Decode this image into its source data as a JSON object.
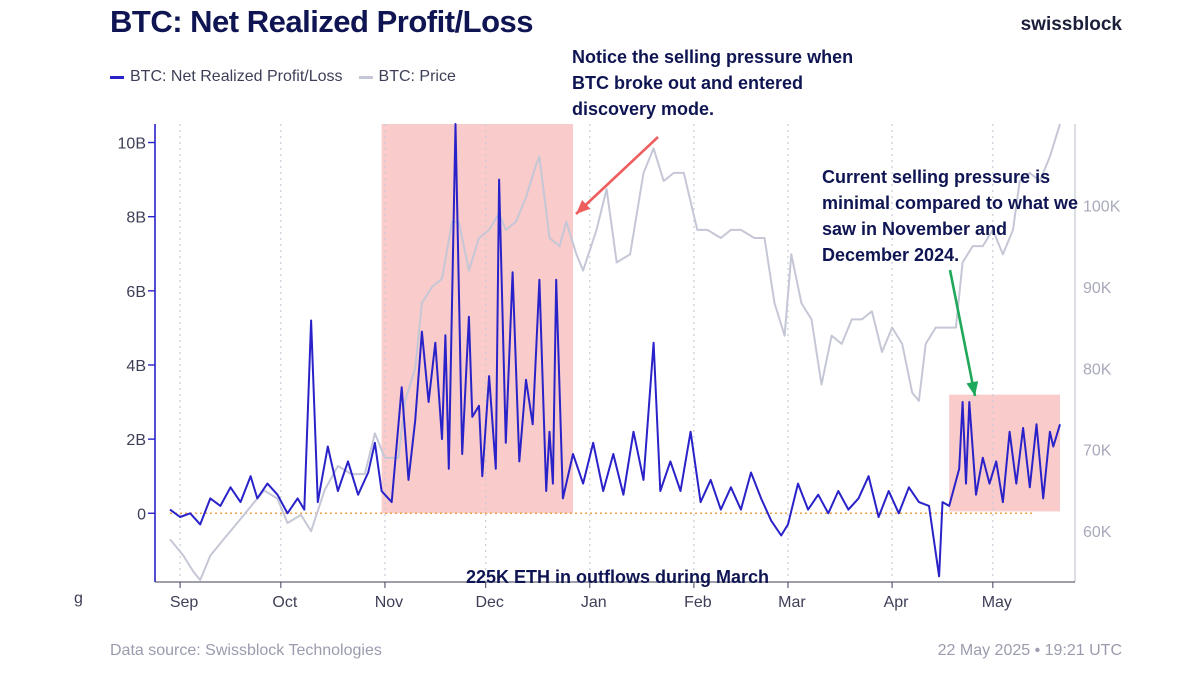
{
  "header": {
    "title": "BTC: Net Realized Profit/Loss",
    "brand": "swissblock"
  },
  "legend": [
    {
      "label": "BTC: Net Realized Profit/Loss",
      "color": "#2a22c9"
    },
    {
      "label": "BTC: Price",
      "color": "#c5c7d6"
    }
  ],
  "annotations": {
    "top": "Notice the selling pressure when BTC broke out and entered discovery mode.",
    "right": "Current selling pressure is minimal compared to what we saw in November and December 2024.",
    "bottom": "225K ETH in outflows during March"
  },
  "footer": {
    "source": "Data source: Swissblock Technologies",
    "timestamp": "22 May 2025 • 19:21 UTC"
  },
  "edge_glyph": "g",
  "colors": {
    "npl_line": "#2a22c9",
    "price_line": "#c5c7d6",
    "highlight": "#f7b9b9",
    "zero_line": "#f0a24a",
    "grid": "#c9cbd6",
    "axis": "#3d3f57",
    "arrow_red": "#ee5e5e",
    "arrow_green": "#1fa85a"
  },
  "chart_data": {
    "type": "line",
    "x_axis": {
      "start": "2024-08-29",
      "end": "2025-05-21",
      "ticks": [
        {
          "date": "2024-09-01",
          "label": "Sep"
        },
        {
          "date": "2024-10-01",
          "label": "Oct"
        },
        {
          "date": "2024-11-01",
          "label": "Nov"
        },
        {
          "date": "2024-12-01",
          "label": "Dec"
        },
        {
          "date": "2025-01-01",
          "label": "Jan"
        },
        {
          "date": "2025-02-01",
          "label": "Feb"
        },
        {
          "date": "2025-03-01",
          "label": "Mar"
        },
        {
          "date": "2025-04-01",
          "label": "Apr"
        },
        {
          "date": "2025-05-01",
          "label": "May"
        }
      ]
    },
    "y_left": {
      "min": -1.8,
      "max": 10.5,
      "ticks": [
        {
          "value": 0,
          "label": "0"
        },
        {
          "value": 2,
          "label": "2B"
        },
        {
          "value": 4,
          "label": "4B"
        },
        {
          "value": 6,
          "label": "6B"
        },
        {
          "value": 8,
          "label": "8B"
        },
        {
          "value": 10,
          "label": "10B"
        }
      ]
    },
    "y_right": {
      "min": 54,
      "max": 110,
      "ticks": [
        {
          "value": 60,
          "label": "60K"
        },
        {
          "value": 70,
          "label": "70K"
        },
        {
          "value": 80,
          "label": "80K"
        },
        {
          "value": 90,
          "label": "90K"
        },
        {
          "value": 100,
          "label": "100K"
        }
      ]
    },
    "highlights": [
      {
        "start": "2024-10-31",
        "end": "2024-12-27",
        "y_top": 10.5,
        "y_bottom": 0
      },
      {
        "start": "2025-04-18",
        "end": "2025-05-21",
        "y_top": 3.2,
        "y_bottom": 0.05
      }
    ],
    "series": [
      {
        "name": "BTC: Net Realized Profit/Loss",
        "axis": "left",
        "points": [
          [
            "2024-08-29",
            0.1
          ],
          [
            "2024-09-01",
            -0.1
          ],
          [
            "2024-09-04",
            0.0
          ],
          [
            "2024-09-07",
            -0.3
          ],
          [
            "2024-09-10",
            0.4
          ],
          [
            "2024-09-13",
            0.2
          ],
          [
            "2024-09-16",
            0.7
          ],
          [
            "2024-09-19",
            0.3
          ],
          [
            "2024-09-22",
            1.0
          ],
          [
            "2024-09-24",
            0.4
          ],
          [
            "2024-09-27",
            0.8
          ],
          [
            "2024-09-30",
            0.5
          ],
          [
            "2024-10-03",
            0.0
          ],
          [
            "2024-10-06",
            0.4
          ],
          [
            "2024-10-08",
            0.1
          ],
          [
            "2024-10-10",
            5.2
          ],
          [
            "2024-10-12",
            0.3
          ],
          [
            "2024-10-15",
            1.8
          ],
          [
            "2024-10-18",
            0.6
          ],
          [
            "2024-10-21",
            1.4
          ],
          [
            "2024-10-24",
            0.5
          ],
          [
            "2024-10-27",
            1.1
          ],
          [
            "2024-10-29",
            1.9
          ],
          [
            "2024-10-31",
            0.6
          ],
          [
            "2024-11-03",
            0.3
          ],
          [
            "2024-11-06",
            3.4
          ],
          [
            "2024-11-08",
            0.9
          ],
          [
            "2024-11-10",
            2.5
          ],
          [
            "2024-11-12",
            4.9
          ],
          [
            "2024-11-14",
            3.0
          ],
          [
            "2024-11-16",
            4.6
          ],
          [
            "2024-11-18",
            2.0
          ],
          [
            "2024-11-19",
            4.8
          ],
          [
            "2024-11-20",
            1.2
          ],
          [
            "2024-11-22",
            10.5
          ],
          [
            "2024-11-24",
            1.6
          ],
          [
            "2024-11-26",
            5.3
          ],
          [
            "2024-11-27",
            2.6
          ],
          [
            "2024-11-29",
            2.9
          ],
          [
            "2024-11-30",
            1.0
          ],
          [
            "2024-12-02",
            3.7
          ],
          [
            "2024-12-04",
            1.2
          ],
          [
            "2024-12-05",
            9.0
          ],
          [
            "2024-12-07",
            1.9
          ],
          [
            "2024-12-09",
            6.5
          ],
          [
            "2024-12-11",
            1.4
          ],
          [
            "2024-12-13",
            3.6
          ],
          [
            "2024-12-15",
            2.4
          ],
          [
            "2024-12-17",
            6.3
          ],
          [
            "2024-12-19",
            0.6
          ],
          [
            "2024-12-20",
            2.2
          ],
          [
            "2024-12-21",
            0.8
          ],
          [
            "2024-12-22",
            6.3
          ],
          [
            "2024-12-24",
            0.4
          ],
          [
            "2024-12-27",
            1.6
          ],
          [
            "2024-12-30",
            0.8
          ],
          [
            "2025-01-02",
            1.9
          ],
          [
            "2025-01-05",
            0.6
          ],
          [
            "2025-01-08",
            1.6
          ],
          [
            "2025-01-11",
            0.5
          ],
          [
            "2025-01-14",
            2.2
          ],
          [
            "2025-01-17",
            0.9
          ],
          [
            "2025-01-20",
            4.6
          ],
          [
            "2025-01-22",
            0.6
          ],
          [
            "2025-01-25",
            1.4
          ],
          [
            "2025-01-28",
            0.6
          ],
          [
            "2025-01-31",
            2.2
          ],
          [
            "2025-02-03",
            0.3
          ],
          [
            "2025-02-06",
            0.9
          ],
          [
            "2025-02-09",
            0.1
          ],
          [
            "2025-02-12",
            0.7
          ],
          [
            "2025-02-15",
            0.1
          ],
          [
            "2025-02-18",
            1.1
          ],
          [
            "2025-02-21",
            0.4
          ],
          [
            "2025-02-24",
            -0.2
          ],
          [
            "2025-02-27",
            -0.6
          ],
          [
            "2025-03-01",
            -0.3
          ],
          [
            "2025-03-04",
            0.8
          ],
          [
            "2025-03-07",
            0.1
          ],
          [
            "2025-03-10",
            0.5
          ],
          [
            "2025-03-13",
            0.0
          ],
          [
            "2025-03-16",
            0.6
          ],
          [
            "2025-03-19",
            0.1
          ],
          [
            "2025-03-22",
            0.4
          ],
          [
            "2025-03-25",
            1.0
          ],
          [
            "2025-03-28",
            -0.1
          ],
          [
            "2025-03-31",
            0.6
          ],
          [
            "2025-04-03",
            0.0
          ],
          [
            "2025-04-06",
            0.7
          ],
          [
            "2025-04-09",
            0.3
          ],
          [
            "2025-04-12",
            0.2
          ],
          [
            "2025-04-15",
            -1.7
          ],
          [
            "2025-04-16",
            0.3
          ],
          [
            "2025-04-18",
            0.2
          ],
          [
            "2025-04-21",
            1.2
          ],
          [
            "2025-04-22",
            3.0
          ],
          [
            "2025-04-23",
            0.8
          ],
          [
            "2025-04-24",
            3.0
          ],
          [
            "2025-04-26",
            0.5
          ],
          [
            "2025-04-28",
            1.5
          ],
          [
            "2025-04-30",
            0.8
          ],
          [
            "2025-05-02",
            1.4
          ],
          [
            "2025-05-04",
            0.3
          ],
          [
            "2025-05-06",
            2.2
          ],
          [
            "2025-05-08",
            0.8
          ],
          [
            "2025-05-10",
            2.3
          ],
          [
            "2025-05-12",
            0.7
          ],
          [
            "2025-05-14",
            2.4
          ],
          [
            "2025-05-16",
            0.4
          ],
          [
            "2025-05-18",
            2.2
          ],
          [
            "2025-05-19",
            1.8
          ],
          [
            "2025-05-21",
            2.4
          ]
        ]
      },
      {
        "name": "BTC: Price",
        "axis": "right",
        "points": [
          [
            "2024-08-29",
            59
          ],
          [
            "2024-09-02",
            57
          ],
          [
            "2024-09-05",
            55
          ],
          [
            "2024-09-07",
            54
          ],
          [
            "2024-09-10",
            57
          ],
          [
            "2024-09-14",
            59
          ],
          [
            "2024-09-18",
            61
          ],
          [
            "2024-09-22",
            63
          ],
          [
            "2024-09-26",
            65
          ],
          [
            "2024-09-30",
            64
          ],
          [
            "2024-10-03",
            61
          ],
          [
            "2024-10-07",
            62
          ],
          [
            "2024-10-10",
            60
          ],
          [
            "2024-10-14",
            65
          ],
          [
            "2024-10-18",
            68
          ],
          [
            "2024-10-22",
            67
          ],
          [
            "2024-10-26",
            67
          ],
          [
            "2024-10-29",
            72
          ],
          [
            "2024-11-01",
            69
          ],
          [
            "2024-11-05",
            69
          ],
          [
            "2024-11-07",
            76
          ],
          [
            "2024-11-10",
            80
          ],
          [
            "2024-11-12",
            88
          ],
          [
            "2024-11-15",
            90
          ],
          [
            "2024-11-18",
            91
          ],
          [
            "2024-11-21",
            98
          ],
          [
            "2024-11-23",
            98
          ],
          [
            "2024-11-26",
            92
          ],
          [
            "2024-11-29",
            96
          ],
          [
            "2024-12-02",
            97
          ],
          [
            "2024-12-05",
            99
          ],
          [
            "2024-12-07",
            97
          ],
          [
            "2024-12-10",
            98
          ],
          [
            "2024-12-13",
            101
          ],
          [
            "2024-12-16",
            105
          ],
          [
            "2024-12-17",
            106
          ],
          [
            "2024-12-20",
            96
          ],
          [
            "2024-12-23",
            95
          ],
          [
            "2024-12-25",
            98
          ],
          [
            "2024-12-28",
            94
          ],
          [
            "2024-12-30",
            92
          ],
          [
            "2025-01-03",
            97
          ],
          [
            "2025-01-06",
            102
          ],
          [
            "2025-01-09",
            93
          ],
          [
            "2025-01-13",
            94
          ],
          [
            "2025-01-17",
            104
          ],
          [
            "2025-01-20",
            107
          ],
          [
            "2025-01-23",
            103
          ],
          [
            "2025-01-26",
            104
          ],
          [
            "2025-01-29",
            104
          ],
          [
            "2025-02-02",
            97
          ],
          [
            "2025-02-05",
            97
          ],
          [
            "2025-02-09",
            96
          ],
          [
            "2025-02-12",
            97
          ],
          [
            "2025-02-15",
            97
          ],
          [
            "2025-02-19",
            96
          ],
          [
            "2025-02-22",
            96
          ],
          [
            "2025-02-25",
            88
          ],
          [
            "2025-02-28",
            84
          ],
          [
            "2025-03-02",
            94
          ],
          [
            "2025-03-05",
            88
          ],
          [
            "2025-03-08",
            86
          ],
          [
            "2025-03-11",
            78
          ],
          [
            "2025-03-14",
            84
          ],
          [
            "2025-03-17",
            83
          ],
          [
            "2025-03-20",
            86
          ],
          [
            "2025-03-23",
            86
          ],
          [
            "2025-03-26",
            87
          ],
          [
            "2025-03-29",
            82
          ],
          [
            "2025-04-01",
            85
          ],
          [
            "2025-04-04",
            83
          ],
          [
            "2025-04-07",
            77
          ],
          [
            "2025-04-09",
            76
          ],
          [
            "2025-04-11",
            83
          ],
          [
            "2025-04-14",
            85
          ],
          [
            "2025-04-17",
            85
          ],
          [
            "2025-04-20",
            85
          ],
          [
            "2025-04-22",
            93
          ],
          [
            "2025-04-25",
            95
          ],
          [
            "2025-04-28",
            95
          ],
          [
            "2025-05-01",
            97
          ],
          [
            "2025-05-04",
            94
          ],
          [
            "2025-05-07",
            97
          ],
          [
            "2025-05-09",
            103
          ],
          [
            "2025-05-12",
            104
          ],
          [
            "2025-05-15",
            103
          ],
          [
            "2025-05-18",
            106
          ],
          [
            "2025-05-21",
            110
          ]
        ]
      }
    ]
  }
}
